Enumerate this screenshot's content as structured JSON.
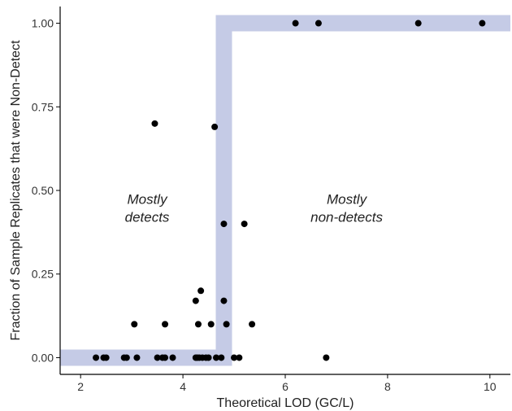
{
  "chart_data": {
    "type": "scatter",
    "title": "",
    "xlabel": "Theoretical LOD (GC/L)",
    "ylabel": "Fraction of Sample Replicates that were Non-Detect",
    "xlim": [
      1.6,
      10.4
    ],
    "ylim": [
      -0.05,
      1.05
    ],
    "xticks": [
      2,
      4,
      6,
      8,
      10
    ],
    "yticks": [
      0.0,
      0.25,
      0.5,
      0.75,
      1.0
    ],
    "ytick_labels": [
      "0.00",
      "0.25",
      "0.50",
      "0.75",
      "1.00"
    ],
    "grid": false,
    "legend": "none",
    "point_color": "#000000",
    "band_color": "#c5cbe6",
    "step_band": {
      "x": [
        1.6,
        4.8,
        4.8,
        10.4
      ],
      "y": [
        0.0,
        0.0,
        1.0,
        1.0
      ]
    },
    "annotations": [
      {
        "lines": [
          "Mostly",
          "detects"
        ],
        "x": 3.3,
        "y": 0.46
      },
      {
        "lines": [
          "Mostly",
          "non-detects"
        ],
        "x": 7.2,
        "y": 0.46
      }
    ],
    "points": [
      {
        "x": 2.3,
        "y": 0.0
      },
      {
        "x": 2.45,
        "y": 0.0
      },
      {
        "x": 2.5,
        "y": 0.0
      },
      {
        "x": 2.85,
        "y": 0.0
      },
      {
        "x": 2.9,
        "y": 0.0
      },
      {
        "x": 3.1,
        "y": 0.0
      },
      {
        "x": 3.5,
        "y": 0.0
      },
      {
        "x": 3.6,
        "y": 0.0
      },
      {
        "x": 3.65,
        "y": 0.0
      },
      {
        "x": 3.8,
        "y": 0.0
      },
      {
        "x": 4.25,
        "y": 0.0
      },
      {
        "x": 4.28,
        "y": 0.0
      },
      {
        "x": 4.32,
        "y": 0.0
      },
      {
        "x": 4.38,
        "y": 0.0
      },
      {
        "x": 4.45,
        "y": 0.0
      },
      {
        "x": 4.5,
        "y": 0.0
      },
      {
        "x": 4.65,
        "y": 0.0
      },
      {
        "x": 4.75,
        "y": 0.0
      },
      {
        "x": 5.0,
        "y": 0.0
      },
      {
        "x": 5.1,
        "y": 0.0
      },
      {
        "x": 6.8,
        "y": 0.0
      },
      {
        "x": 3.05,
        "y": 0.1
      },
      {
        "x": 3.65,
        "y": 0.1
      },
      {
        "x": 4.3,
        "y": 0.1
      },
      {
        "x": 4.55,
        "y": 0.1
      },
      {
        "x": 4.85,
        "y": 0.1
      },
      {
        "x": 5.35,
        "y": 0.1
      },
      {
        "x": 4.25,
        "y": 0.17
      },
      {
        "x": 4.8,
        "y": 0.17
      },
      {
        "x": 4.35,
        "y": 0.2
      },
      {
        "x": 4.8,
        "y": 0.4
      },
      {
        "x": 5.2,
        "y": 0.4
      },
      {
        "x": 4.62,
        "y": 0.69
      },
      {
        "x": 3.45,
        "y": 0.7
      },
      {
        "x": 6.2,
        "y": 1.0
      },
      {
        "x": 6.65,
        "y": 1.0
      },
      {
        "x": 8.6,
        "y": 1.0
      },
      {
        "x": 9.85,
        "y": 1.0
      }
    ]
  }
}
